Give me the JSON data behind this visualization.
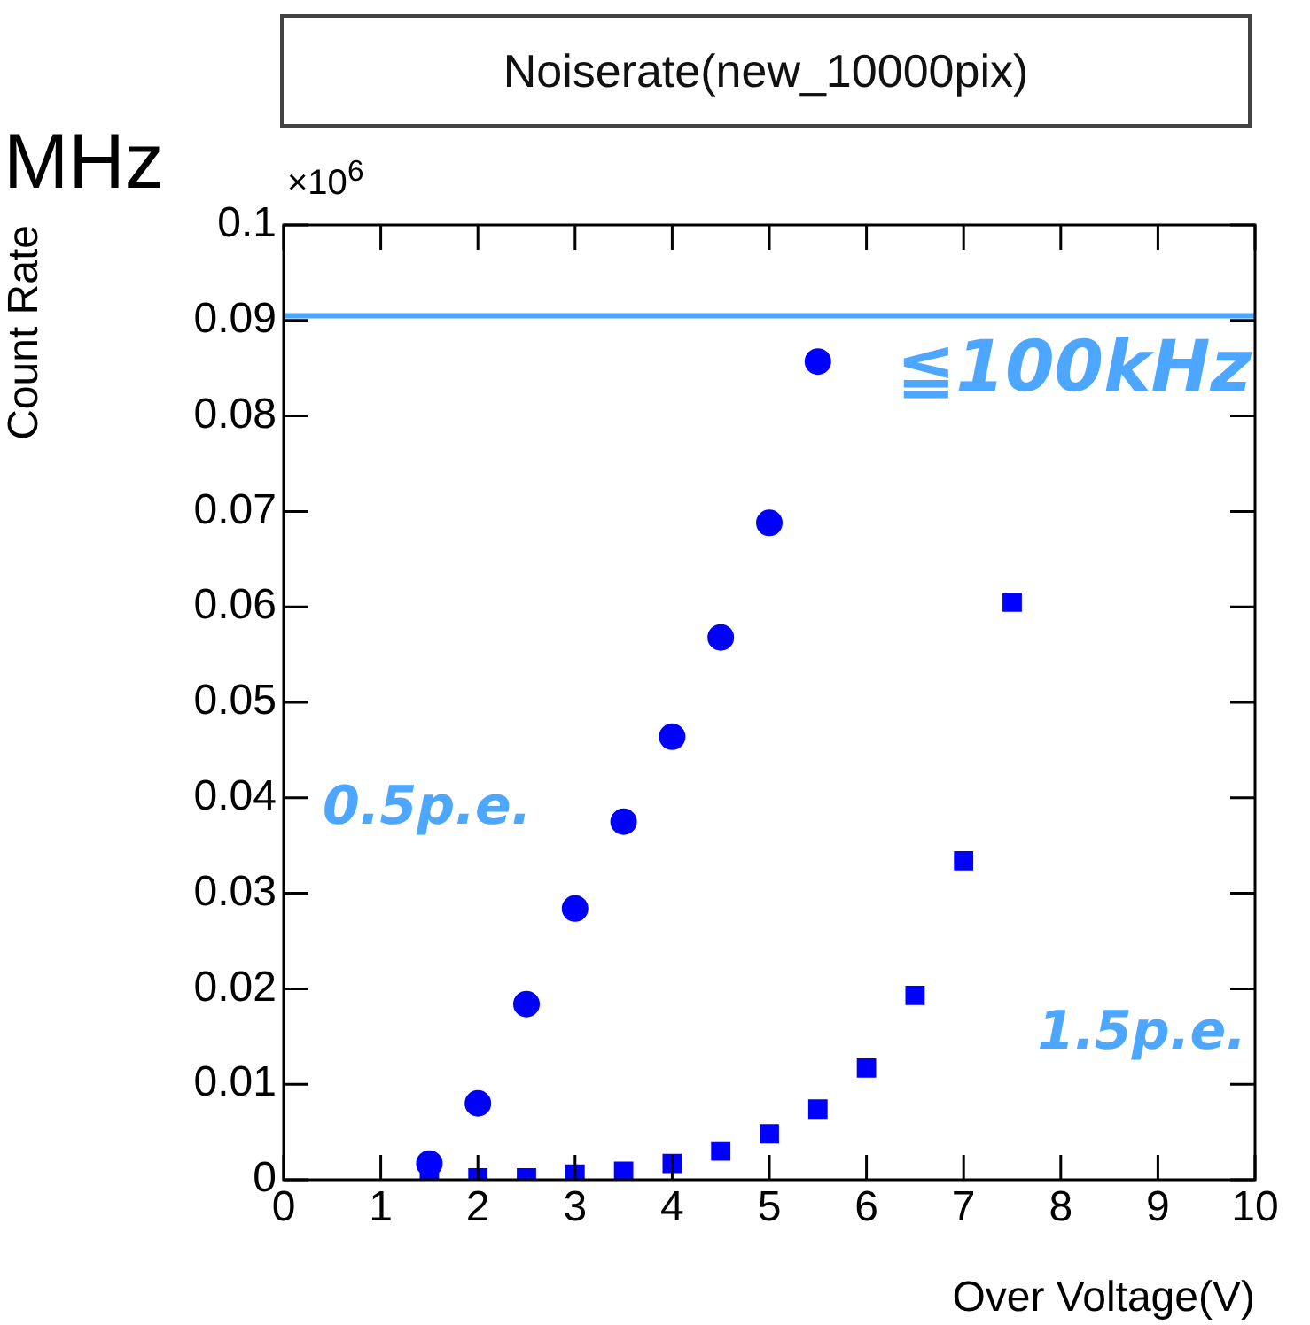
{
  "chart_data": {
    "type": "scatter",
    "title": "Noiserate(new_10000pix)",
    "xlabel": "Over Voltage(V)",
    "ylabel": "Count Rate",
    "series": [
      {
        "color": "#0000ff",
        "marker": "circle",
        "x": [
          1.5,
          2,
          2.5,
          3,
          3.5,
          4,
          4.5,
          5,
          5.5
        ],
        "values": [
          0.0017,
          0.008,
          0.0184,
          0.0284,
          0.0375,
          0.0464,
          0.0568,
          0.0688,
          0.0857
        ]
      },
      {
        "color": "#0000ff",
        "marker": "square",
        "x": [
          1.5,
          2,
          2.5,
          3,
          3.5,
          4,
          4.5,
          5,
          5.5,
          6,
          6.5,
          7,
          7.5
        ],
        "values": [
          0.0007,
          0.0002,
          0.0002,
          0.0006,
          0.0009,
          0.0017,
          0.003,
          0.0048,
          0.0074,
          0.0117,
          0.0193,
          0.0334,
          0.0605
        ]
      }
    ],
    "xlim": [
      0,
      10
    ],
    "xticks": [
      0,
      1,
      2,
      3,
      4,
      5,
      6,
      7,
      8,
      9,
      10
    ],
    "ylim": [
      0,
      0.1
    ],
    "yticks": [
      0,
      0.01,
      0.02,
      0.03,
      0.04,
      0.05,
      0.06,
      0.07,
      0.08,
      0.09,
      0.1
    ],
    "ref_lines": [
      {
        "axis": "y",
        "value": 0.0905,
        "label": "≦100kHz",
        "color": "#4da6ff"
      }
    ],
    "annotations": [
      "MHz",
      "×10$^{6}$",
      "0.5p.e.",
      "1.5p.e."
    ],
    "grid": false,
    "legend": false
  }
}
